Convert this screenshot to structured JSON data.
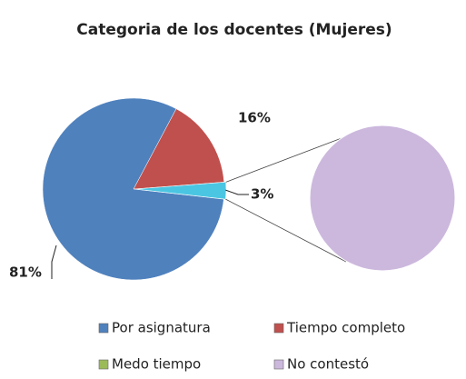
{
  "chart_data": {
    "type": "pie-of-pie",
    "title": "Categoria de los docentes (Mujeres)",
    "categories": [
      "Por asignatura",
      "Tiempo completo",
      "Medo tiempo",
      "No contestó"
    ],
    "values": [
      81,
      16,
      0,
      3
    ],
    "value_labels": [
      "81%",
      "16%",
      null,
      "3%"
    ],
    "colors": [
      "#4f81bd",
      "#c0504d",
      "#9bbb59",
      "#ccb8dd"
    ],
    "secondary_count": 2,
    "other_color": "#4bc6e2"
  }
}
